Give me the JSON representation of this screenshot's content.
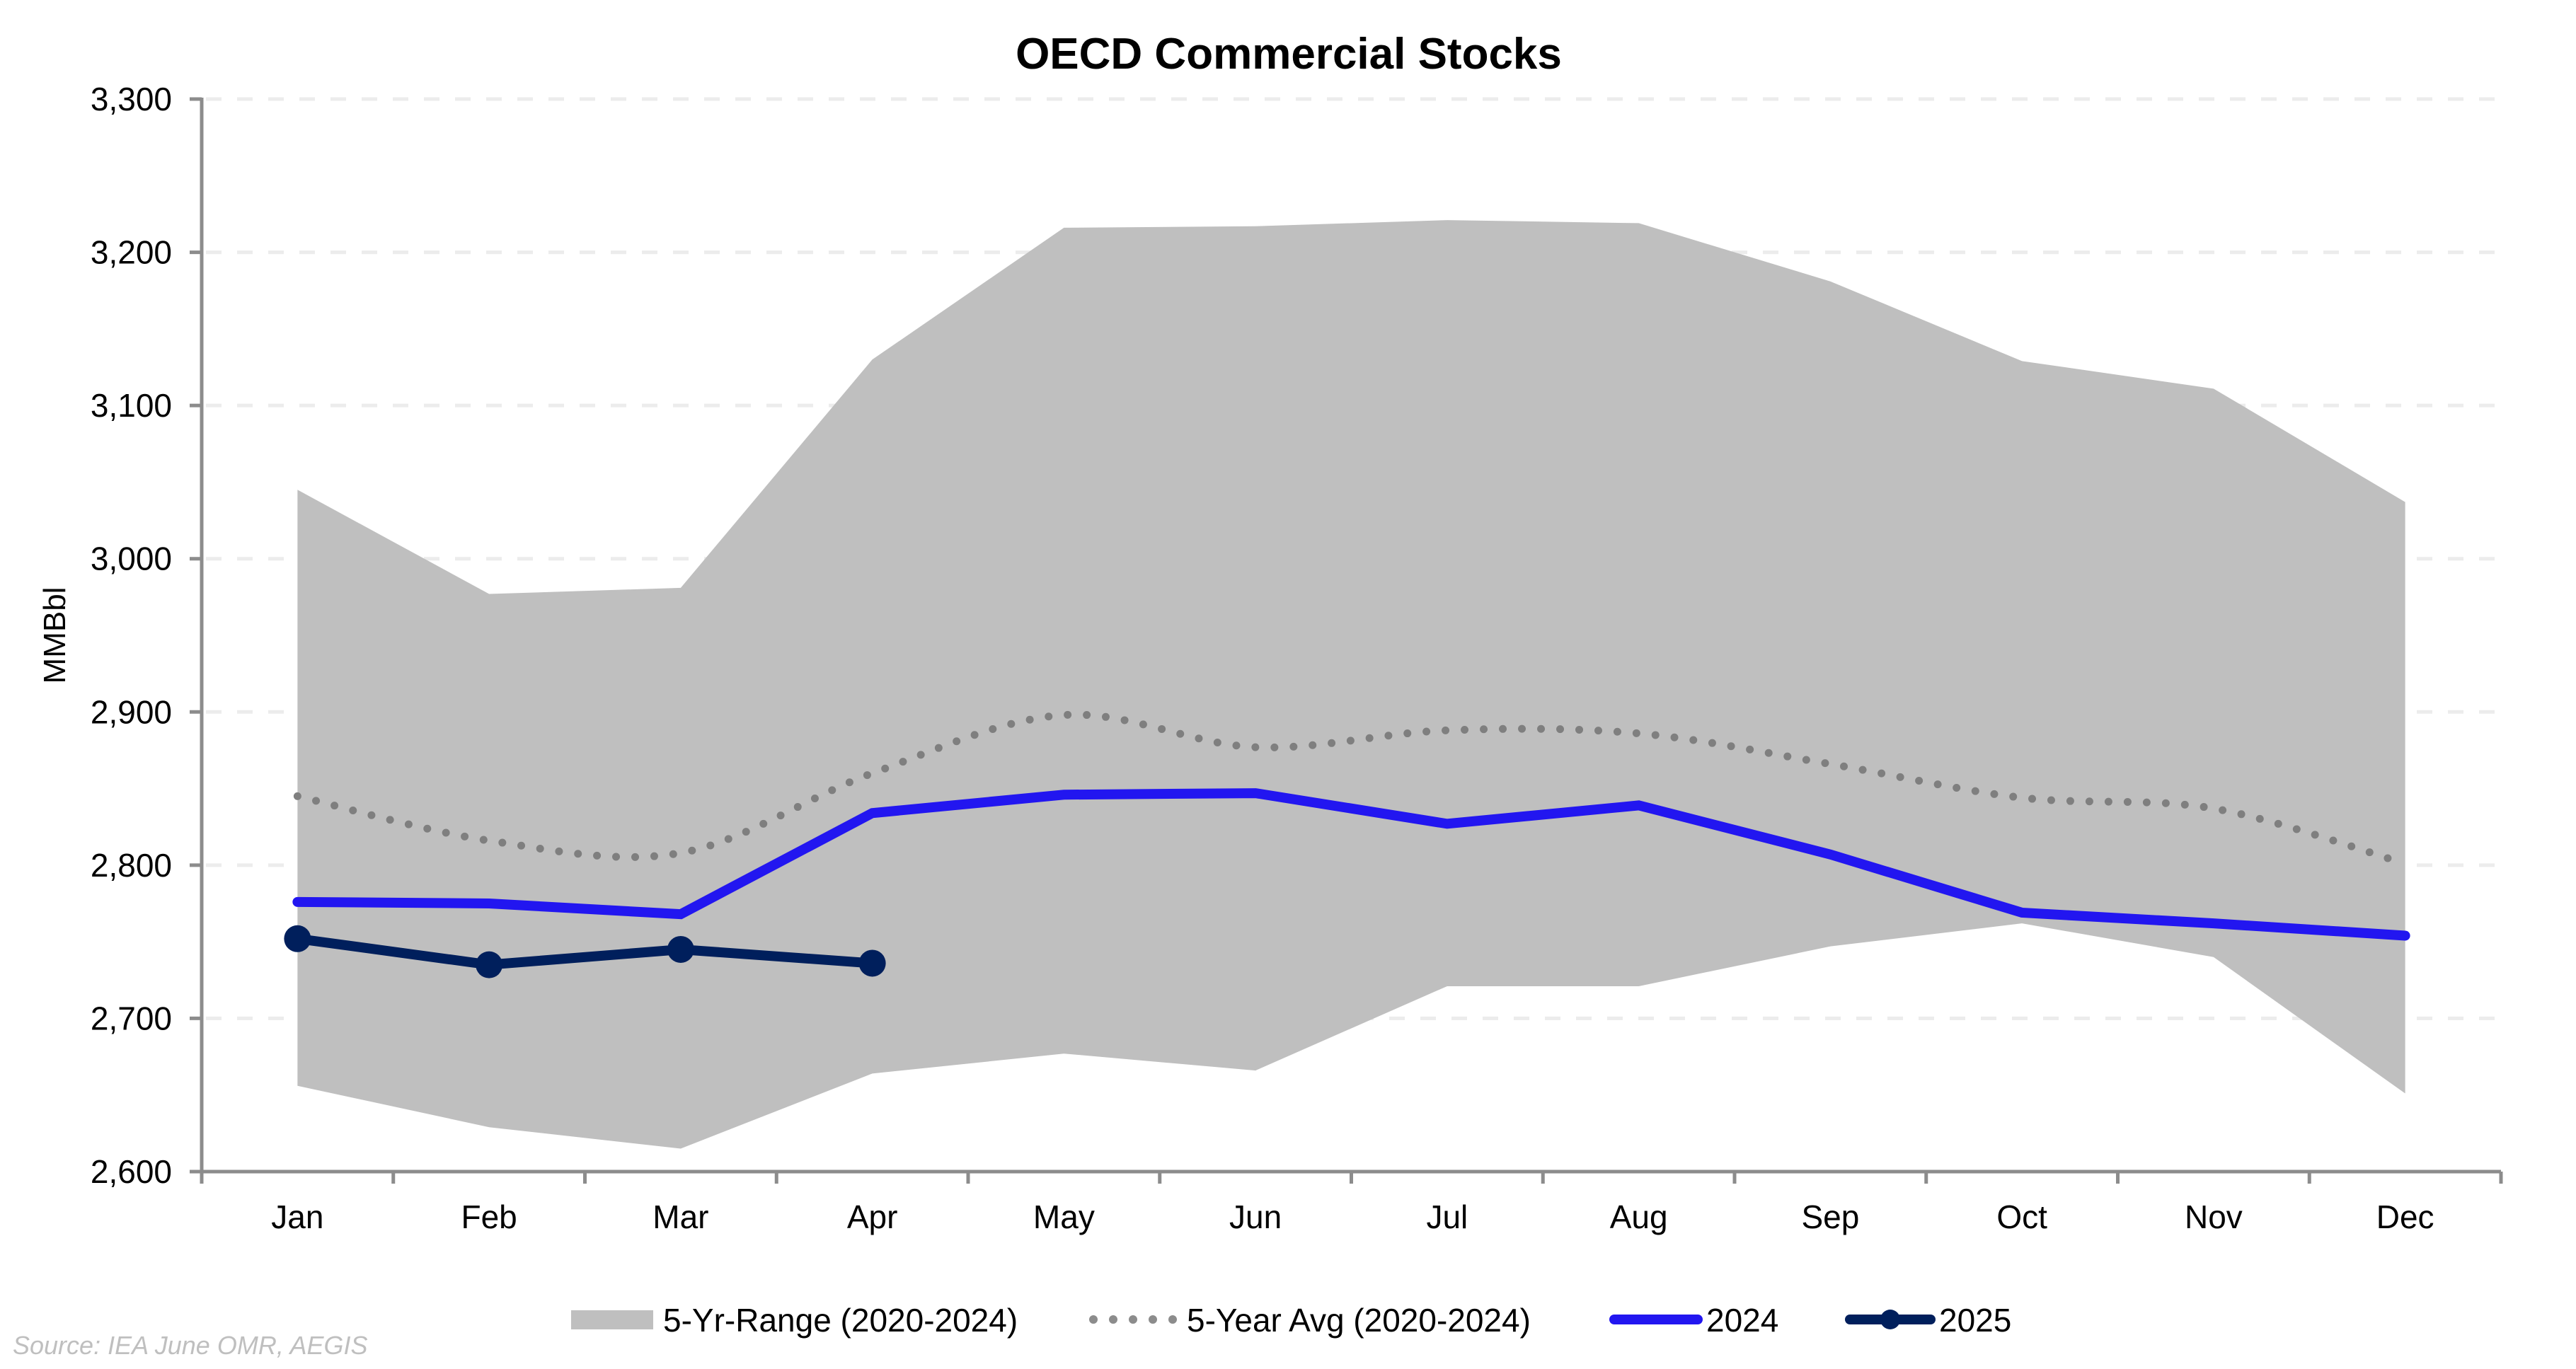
{
  "chart_data": {
    "type": "line",
    "title": "OECD Commercial Stocks",
    "xlabel": "",
    "ylabel": "MMBbl",
    "ylim": [
      2600,
      3300
    ],
    "yticks": [
      2600,
      2700,
      2800,
      2900,
      3000,
      3100,
      3200,
      3300
    ],
    "ytick_labels": [
      "2,600",
      "2,700",
      "2,800",
      "2,900",
      "3,000",
      "3,100",
      "3,200",
      "3,300"
    ],
    "grid": "horizontal dashed",
    "legend_position": "bottom",
    "categories": [
      "Jan",
      "Feb",
      "Mar",
      "Apr",
      "May",
      "Jun",
      "Jul",
      "Aug",
      "Sep",
      "Oct",
      "Nov",
      "Dec"
    ],
    "range": {
      "name": "5-Yr-Range (2020-2024)",
      "color": "#bfbfbf",
      "low": [
        2656,
        2629,
        2615,
        2664,
        2677,
        2666,
        2721,
        2721,
        2747,
        2762,
        2740,
        2651
      ],
      "high": [
        3045,
        2977,
        2981,
        3130,
        3216,
        3217,
        3221,
        3219,
        3181,
        3129,
        3111,
        3037
      ]
    },
    "series": [
      {
        "name": "5-Year Avg (2020-2024)",
        "style": "dotted",
        "color": "#7f7f7f",
        "values": [
          2845,
          2816,
          2808,
          2860,
          2898,
          2877,
          2888,
          2886,
          2866,
          2844,
          2837,
          2801
        ]
      },
      {
        "name": "2024",
        "style": "solid",
        "color": "#2216f0",
        "values": [
          2776,
          2775,
          2768,
          2834,
          2846,
          2847,
          2827,
          2839,
          2807,
          2769,
          2762,
          2754
        ]
      },
      {
        "name": "2025",
        "style": "solid-markers",
        "color": "#001f5c",
        "values": [
          2752,
          2735,
          2745,
          2736,
          null,
          null,
          null,
          null,
          null,
          null,
          null,
          null
        ]
      }
    ],
    "source": "Source: IEA June OMR, AEGIS"
  }
}
